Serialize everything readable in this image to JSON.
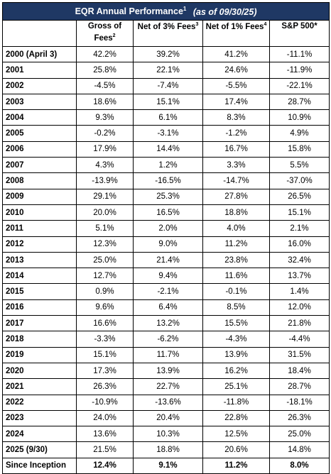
{
  "title": {
    "main": "EQR Annual Performance",
    "main_sup": "1",
    "as_of": "(as of 09/30/25)"
  },
  "headers": {
    "col1": "Gross of Fees",
    "col1_sup": "2",
    "col2": "Net of 3% Fees",
    "col2_sup": "3",
    "col3": "Net of 1% Fees",
    "col3_sup": "4",
    "col4": "S&P 500*"
  },
  "rows": [
    {
      "year": "2000 (April 3)",
      "gross": "42.2%",
      "net3": "39.2%",
      "net1": "41.2%",
      "sp": "-11.1%"
    },
    {
      "year": "2001",
      "gross": "25.8%",
      "net3": "22.1%",
      "net1": "24.6%",
      "sp": "-11.9%"
    },
    {
      "year": "2002",
      "gross": "-4.5%",
      "net3": "-7.4%",
      "net1": "-5.5%",
      "sp": "-22.1%"
    },
    {
      "year": "2003",
      "gross": "18.6%",
      "net3": "15.1%",
      "net1": "17.4%",
      "sp": "28.7%"
    },
    {
      "year": "2004",
      "gross": "9.3%",
      "net3": "6.1%",
      "net1": "8.3%",
      "sp": "10.9%"
    },
    {
      "year": "2005",
      "gross": "-0.2%",
      "net3": "-3.1%",
      "net1": "-1.2%",
      "sp": "4.9%"
    },
    {
      "year": "2006",
      "gross": "17.9%",
      "net3": "14.4%",
      "net1": "16.7%",
      "sp": "15.8%"
    },
    {
      "year": "2007",
      "gross": "4.3%",
      "net3": "1.2%",
      "net1": "3.3%",
      "sp": "5.5%"
    },
    {
      "year": "2008",
      "gross": "-13.9%",
      "net3": "-16.5%",
      "net1": "-14.7%",
      "sp": "-37.0%"
    },
    {
      "year": "2009",
      "gross": "29.1%",
      "net3": "25.3%",
      "net1": "27.8%",
      "sp": "26.5%"
    },
    {
      "year": "2010",
      "gross": "20.0%",
      "net3": "16.5%",
      "net1": "18.8%",
      "sp": "15.1%"
    },
    {
      "year": "2011",
      "gross": "5.1%",
      "net3": "2.0%",
      "net1": "4.0%",
      "sp": "2.1%"
    },
    {
      "year": "2012",
      "gross": "12.3%",
      "net3": "9.0%",
      "net1": "11.2%",
      "sp": "16.0%"
    },
    {
      "year": "2013",
      "gross": "25.0%",
      "net3": "21.4%",
      "net1": "23.8%",
      "sp": "32.4%"
    },
    {
      "year": "2014",
      "gross": "12.7%",
      "net3": "9.4%",
      "net1": "11.6%",
      "sp": "13.7%"
    },
    {
      "year": "2015",
      "gross": "0.9%",
      "net3": "-2.1%",
      "net1": "-0.1%",
      "sp": "1.4%"
    },
    {
      "year": "2016",
      "gross": "9.6%",
      "net3": "6.4%",
      "net1": "8.5%",
      "sp": "12.0%"
    },
    {
      "year": "2017",
      "gross": "16.6%",
      "net3": "13.2%",
      "net1": "15.5%",
      "sp": "21.8%"
    },
    {
      "year": "2018",
      "gross": "-3.3%",
      "net3": "-6.2%",
      "net1": "-4.3%",
      "sp": "-4.4%"
    },
    {
      "year": "2019",
      "gross": "15.1%",
      "net3": "11.7%",
      "net1": "13.9%",
      "sp": "31.5%"
    },
    {
      "year": "2020",
      "gross": "17.3%",
      "net3": "13.9%",
      "net1": "16.2%",
      "sp": "18.4%"
    },
    {
      "year": "2021",
      "gross": "26.3%",
      "net3": "22.7%",
      "net1": "25.1%",
      "sp": "28.7%"
    },
    {
      "year": "2022",
      "gross": "-10.9%",
      "net3": "-13.6%",
      "net1": "-11.8%",
      "sp": "-18.1%"
    },
    {
      "year": "2023",
      "gross": "24.0%",
      "net3": "20.4%",
      "net1": "22.8%",
      "sp": "26.3%"
    },
    {
      "year": "2024",
      "gross": "13.6%",
      "net3": "10.3%",
      "net1": "12.5%",
      "sp": "25.0%"
    },
    {
      "year": "2025 (9/30)",
      "gross": "21.5%",
      "net3": "18.8%",
      "net1": "20.6%",
      "sp": "14.8%"
    }
  ],
  "total": {
    "year": "Since Inception",
    "gross": "12.4%",
    "net3": "9.1%",
    "net1": "11.2%",
    "sp": "8.0%"
  },
  "colors": {
    "title_bg": "#1f3864",
    "title_text": "#ffffff",
    "border": "#000000"
  }
}
